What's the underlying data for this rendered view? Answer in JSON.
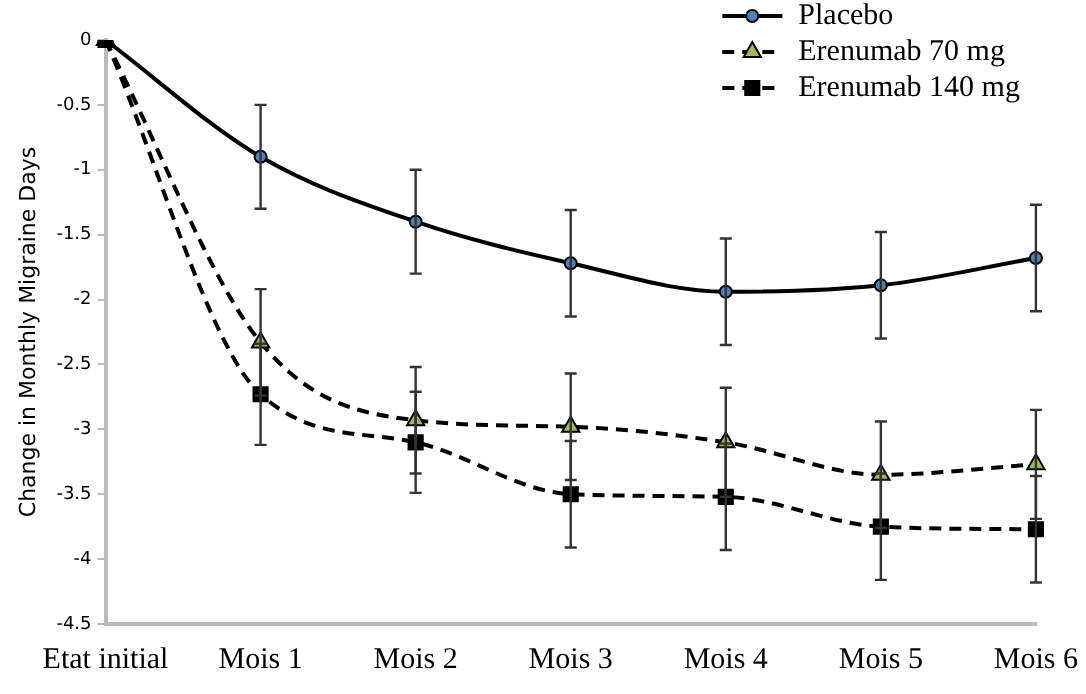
{
  "chart_data": {
    "type": "line",
    "ylabel": "Change in Monthly Migraine Days",
    "categories": [
      "Etat initial",
      "Mois 1",
      "Mois 2",
      "Mois 3",
      "Mois 4",
      "Mois 5",
      "Mois 6"
    ],
    "series": [
      {
        "name": "Placebo",
        "color": "#4f81bd",
        "marker": "circle",
        "line_style": "solid",
        "values": [
          0,
          -0.9,
          -1.4,
          -1.72,
          -1.94,
          -1.89,
          -1.68
        ],
        "errors": [
          null,
          0.4,
          0.4,
          0.41,
          0.41,
          0.41,
          0.41
        ]
      },
      {
        "name": "Erenumab 70 mg",
        "color": "#9bbb59",
        "marker": "triangle",
        "line_style": "dashed",
        "values": [
          0,
          -2.33,
          -2.93,
          -2.98,
          -3.1,
          -3.35,
          -3.27
        ],
        "errors": [
          null,
          0.41,
          0.41,
          0.41,
          0.42,
          0.41,
          0.42
        ]
      },
      {
        "name": "Erenumab 140 mg",
        "color": "#000000",
        "marker": "square",
        "line_style": "dashed",
        "values": [
          0,
          -2.73,
          -3.1,
          -3.5,
          -3.52,
          -3.75,
          -3.77
        ],
        "errors": [
          null,
          0.39,
          0.39,
          0.41,
          0.41,
          0.41,
          0.41
        ]
      }
    ],
    "ylim": [
      -4.5,
      0
    ],
    "yticks": [
      0,
      -0.5,
      -1,
      -1.5,
      -2,
      -2.5,
      -3,
      -3.5,
      -4,
      -4.5
    ],
    "grid": false,
    "legend": "top right"
  }
}
